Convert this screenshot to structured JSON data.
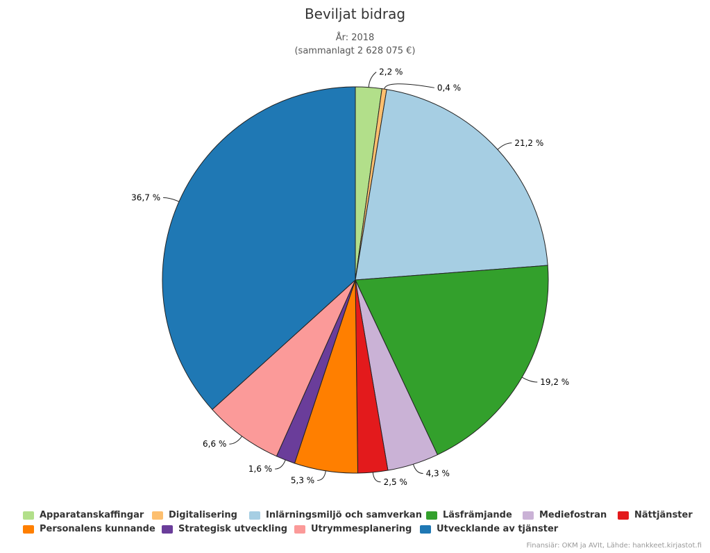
{
  "chart_data": {
    "type": "pie",
    "title": "Beviljat bidrag",
    "subtitle_lines": [
      "År: 2018",
      "(sammanlagt 2 628 075 €)"
    ],
    "slices": [
      {
        "name": "Apparatanskaffingar",
        "value": 2.2,
        "label": "2,2 %",
        "color": "#b2df8a"
      },
      {
        "name": "Digitalisering",
        "value": 0.4,
        "label": "0,4 %",
        "color": "#fdbf6f"
      },
      {
        "name": "Inlärningsmiljö och samverkan",
        "value": 21.2,
        "label": "21,2 %",
        "color": "#a6cee3"
      },
      {
        "name": "Läsfrämjande",
        "value": 19.2,
        "label": "19,2 %",
        "color": "#33a02c"
      },
      {
        "name": "Mediefostran",
        "value": 4.3,
        "label": "4,3 %",
        "color": "#cab2d6"
      },
      {
        "name": "Nättjänster",
        "value": 2.5,
        "label": "2,5 %",
        "color": "#e31a1c"
      },
      {
        "name": "Personalens kunnande",
        "value": 5.3,
        "label": "5,3 %",
        "color": "#ff7f00"
      },
      {
        "name": "Strategisk utveckling",
        "value": 1.6,
        "label": "1,6 %",
        "color": "#6a3d9a"
      },
      {
        "name": "Utrymmesplanering",
        "value": 6.6,
        "label": "6,6 %",
        "color": "#fb9a99"
      },
      {
        "name": "Utvecklande av tjänster",
        "value": 36.7,
        "label": "36,7 %",
        "color": "#1f78b4"
      }
    ],
    "legend_position": "bottom"
  },
  "credits": "Finansiär: OKM ja AVIt, Lähde: hankkeet.kirjastot.fi"
}
